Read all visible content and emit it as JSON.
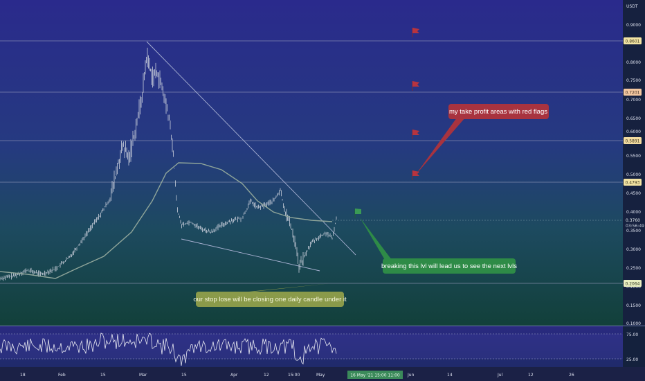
{
  "price_axis": {
    "currency": "USDT",
    "ticks": [
      "0.9000",
      "0.8000",
      "0.7500",
      "0.7000",
      "0.6500",
      "0.6000",
      "0.5500",
      "0.5000",
      "0.4500",
      "0.4000",
      "0.3500",
      "0.3000",
      "0.2500",
      "0.2000",
      "0.1500",
      "0.1000"
    ],
    "levels": [
      {
        "label": "0.8601",
        "color": "#f3e4a3"
      },
      {
        "label": "0.7201",
        "color": "#f3c7a0"
      },
      {
        "label": "0.5891",
        "color": "#f3dca0"
      },
      {
        "label": "0.4793",
        "color": "#f3e4a3"
      },
      {
        "label": "0.2064",
        "color": "#e9eec0"
      }
    ],
    "current_price": "0.3760",
    "countdown": "03:56:49"
  },
  "rsi_axis": {
    "ticks": [
      "75.00",
      "25.00"
    ]
  },
  "time_axis": {
    "labels": [
      "18",
      "Feb",
      "15",
      "Mar",
      "15",
      "Apr",
      "12",
      "15:00",
      "May",
      "Jun",
      "14",
      "Jul",
      "12",
      "26"
    ],
    "crosshair_label": "16 May '21  15:00  11:00"
  },
  "annotations": {
    "take_profit": "my take profit areas with red flags",
    "breakout": "breaking this lvl will lead us to see the next lvls",
    "stop_loss": "our stop lose will be closing one daily candle under it"
  },
  "colors": {
    "flag_red": "#b8343f",
    "flag_green": "#3a9a55",
    "note_red": "#a8333f",
    "note_green": "#2e8b47",
    "note_olive": "#8a9a4a",
    "ma_line": "#8fa59a",
    "candles": "#c9cfdb"
  },
  "icons": {
    "flag": "flag-icon"
  }
}
